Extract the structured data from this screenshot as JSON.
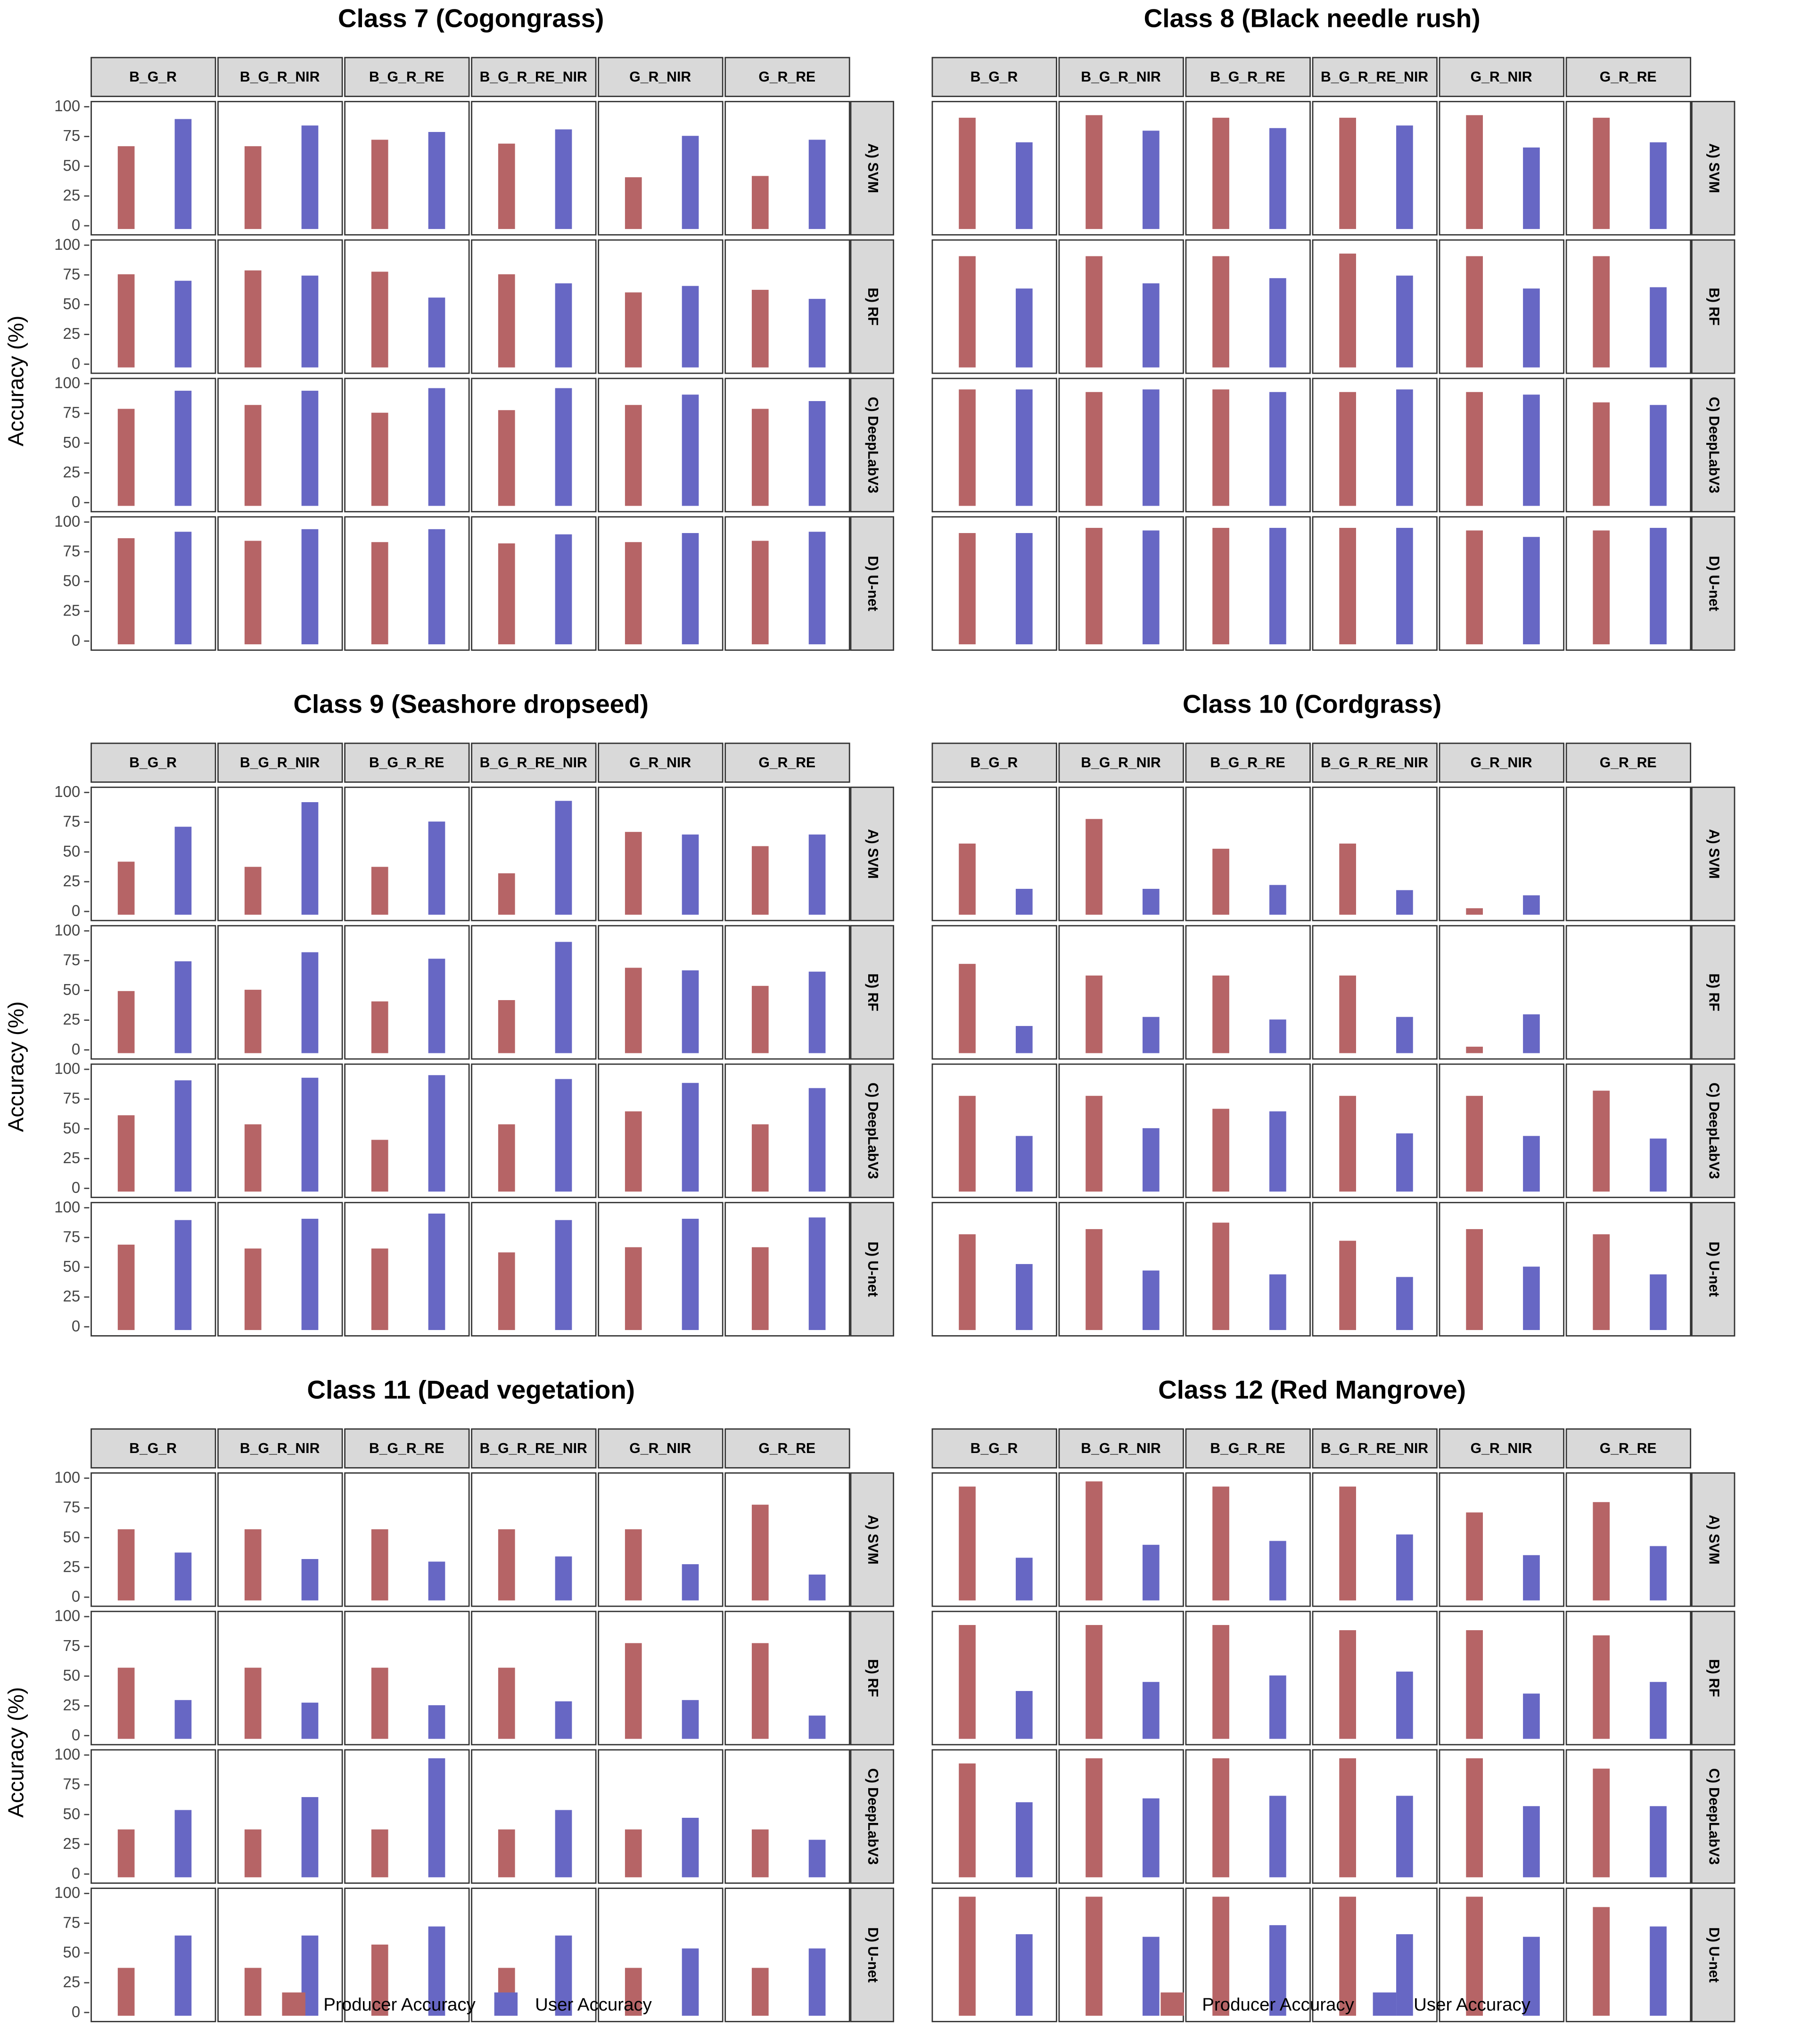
{
  "colors": {
    "producer": "#b66466",
    "user": "#6767c4"
  },
  "combos": [
    "B_G_R",
    "B_G_R_NIR",
    "B_G_R_RE",
    "B_G_R_RE_NIR",
    "G_R_NIR",
    "G_R_RE"
  ],
  "models": [
    "A) SVM",
    "B) RF",
    "C) DeepLabV3",
    "D) U-net"
  ],
  "ylabel": "Accuracy (%)",
  "yticks": [
    "100",
    "75",
    "50",
    "25",
    "0"
  ],
  "legend": {
    "producer": "Producer Accuracy",
    "user": "User Accuracy"
  },
  "chart_data": [
    {
      "type": "bar",
      "title": "Class 7 (Cogongrass)",
      "ylabel": "Accuracy (%)",
      "ylim": [
        0,
        100
      ],
      "facet_cols": [
        "B_G_R",
        "B_G_R_NIR",
        "B_G_R_RE",
        "B_G_R_RE_NIR",
        "G_R_NIR",
        "G_R_RE"
      ],
      "facet_rows": [
        "A) SVM",
        "B) RF",
        "C) DeepLabV3",
        "D) U-net"
      ],
      "series": [
        {
          "name": "Producer Accuracy",
          "values": [
            [
              70,
              70,
              75,
              72,
              44,
              45
            ],
            [
              78,
              81,
              80,
              78,
              63,
              65
            ],
            [
              81,
              85,
              78,
              80,
              85,
              81
            ],
            [
              89,
              87,
              86,
              85,
              86,
              87
            ]
          ]
        },
        {
          "name": "User Accuracy",
          "values": [
            [
              92,
              87,
              82,
              84,
              78,
              75
            ],
            [
              73,
              77,
              59,
              71,
              68,
              58
            ],
            [
              97,
              97,
              99,
              99,
              93,
              88
            ],
            [
              95,
              97,
              97,
              92,
              94,
              95
            ]
          ]
        }
      ]
    },
    {
      "type": "bar",
      "title": "Class 8 (Black needle rush)",
      "ylabel": "Accuracy (%)",
      "ylim": [
        0,
        100
      ],
      "facet_cols": [
        "B_G_R",
        "B_G_R_NIR",
        "B_G_R_RE",
        "B_G_R_RE_NIR",
        "G_R_NIR",
        "G_R_RE"
      ],
      "facet_rows": [
        "A) SVM",
        "B) RF",
        "C) DeepLabV3",
        "D) U-net"
      ],
      "series": [
        {
          "name": "Producer Accuracy",
          "values": [
            [
              94,
              96,
              94,
              94,
              96,
              94
            ],
            [
              94,
              94,
              94,
              96,
              94,
              94
            ],
            [
              98,
              96,
              98,
              96,
              96,
              87
            ],
            [
              93,
              98,
              98,
              98,
              96,
              96
            ]
          ]
        },
        {
          "name": "User Accuracy",
          "values": [
            [
              73,
              83,
              85,
              87,
              68,
              73
            ],
            [
              66,
              71,
              75,
              77,
              66,
              67
            ],
            [
              98,
              98,
              96,
              98,
              94,
              85
            ],
            [
              93,
              96,
              98,
              98,
              90,
              98
            ]
          ]
        }
      ]
    },
    {
      "type": "bar",
      "title": "Class 9 (Seashore dropseed)",
      "ylabel": "Accuracy (%)",
      "ylim": [
        0,
        100
      ],
      "facet_cols": [
        "B_G_R",
        "B_G_R_NIR",
        "B_G_R_RE",
        "B_G_R_RE_NIR",
        "G_R_NIR",
        "G_R_RE"
      ],
      "facet_rows": [
        "A) SVM",
        "B) RF",
        "C) DeepLabV3",
        "D) U-net"
      ],
      "series": [
        {
          "name": "Producer Accuracy",
          "values": [
            [
              45,
              40,
              40,
              35,
              70,
              58
            ],
            [
              52,
              53,
              44,
              45,
              72,
              57
            ],
            [
              64,
              56,
              44,
              57,
              67,
              57
            ],
            [
              72,
              68,
              69,
              65,
              70,
              70
            ]
          ]
        },
        {
          "name": "User Accuracy",
          "values": [
            [
              74,
              95,
              78,
              96,
              67,
              67
            ],
            [
              77,
              85,
              79,
              94,
              70,
              68
            ],
            [
              94,
              96,
              98,
              95,
              91,
              87
            ],
            [
              92,
              93,
              98,
              92,
              93,
              95
            ]
          ]
        }
      ]
    },
    {
      "type": "bar",
      "title": "Class 10 (Cordgrass)",
      "ylabel": "Accuracy (%)",
      "ylim": [
        0,
        100
      ],
      "facet_cols": [
        "B_G_R",
        "B_G_R_NIR",
        "B_G_R_RE",
        "B_G_R_RE_NIR",
        "G_R_NIR",
        "G_R_RE"
      ],
      "facet_rows": [
        "A) SVM",
        "B) RF",
        "C) DeepLabV3",
        "D) U-net"
      ],
      "series": [
        {
          "name": "Producer Accuracy",
          "values": [
            [
              60,
              80,
              55,
              60,
              5,
              0
            ],
            [
              75,
              65,
              65,
              65,
              5,
              0
            ],
            [
              80,
              80,
              70,
              80,
              80,
              85
            ],
            [
              80,
              85,
              90,
              75,
              85,
              80
            ]
          ]
        },
        {
          "name": "User Accuracy",
          "values": [
            [
              22,
              22,
              25,
              21,
              16,
              0
            ],
            [
              23,
              30,
              28,
              30,
              33,
              0
            ],
            [
              47,
              53,
              67,
              49,
              47,
              45
            ],
            [
              55,
              50,
              47,
              45,
              53,
              47
            ]
          ]
        }
      ]
    },
    {
      "type": "bar",
      "title": "Class 11 (Dead vegetation)",
      "ylabel": "Accuracy (%)",
      "ylim": [
        0,
        100
      ],
      "facet_cols": [
        "B_G_R",
        "B_G_R_NIR",
        "B_G_R_RE",
        "B_G_R_RE_NIR",
        "G_R_NIR",
        "G_R_RE"
      ],
      "facet_rows": [
        "A) SVM",
        "B) RF",
        "C) DeepLabV3",
        "D) U-net"
      ],
      "series": [
        {
          "name": "Producer Accuracy",
          "values": [
            [
              60,
              60,
              60,
              60,
              60,
              80
            ],
            [
              60,
              60,
              60,
              60,
              80,
              80
            ],
            [
              40,
              40,
              40,
              40,
              40,
              40
            ],
            [
              40,
              40,
              60,
              40,
              40,
              40
            ]
          ]
        },
        {
          "name": "User Accuracy",
          "values": [
            [
              40,
              35,
              33,
              37,
              30,
              22
            ],
            [
              33,
              30,
              28,
              32,
              33,
              20
            ],
            [
              57,
              67,
              100,
              57,
              50,
              32
            ],
            [
              67,
              67,
              75,
              67,
              57,
              57
            ]
          ]
        }
      ]
    },
    {
      "type": "bar",
      "title": "Class 12 (Red Mangrove)",
      "ylabel": "Accuracy (%)",
      "ylim": [
        0,
        100
      ],
      "facet_cols": [
        "B_G_R",
        "B_G_R_NIR",
        "B_G_R_RE",
        "B_G_R_RE_NIR",
        "G_R_NIR",
        "G_R_RE"
      ],
      "facet_rows": [
        "A) SVM",
        "B) RF",
        "C) DeepLabV3",
        "D) U-net"
      ],
      "series": [
        {
          "name": "Producer Accuracy",
          "values": [
            [
              96,
              100,
              96,
              96,
              74,
              83
            ],
            [
              96,
              96,
              96,
              91,
              91,
              87
            ],
            [
              96,
              100,
              100,
              100,
              100,
              91
            ],
            [
              100,
              100,
              100,
              100,
              100,
              91
            ]
          ]
        },
        {
          "name": "User Accuracy",
          "values": [
            [
              36,
              47,
              50,
              55,
              38,
              46
            ],
            [
              40,
              48,
              53,
              57,
              38,
              48
            ],
            [
              63,
              66,
              69,
              69,
              60,
              60
            ],
            [
              69,
              66,
              76,
              69,
              66,
              75
            ]
          ]
        }
      ]
    }
  ]
}
